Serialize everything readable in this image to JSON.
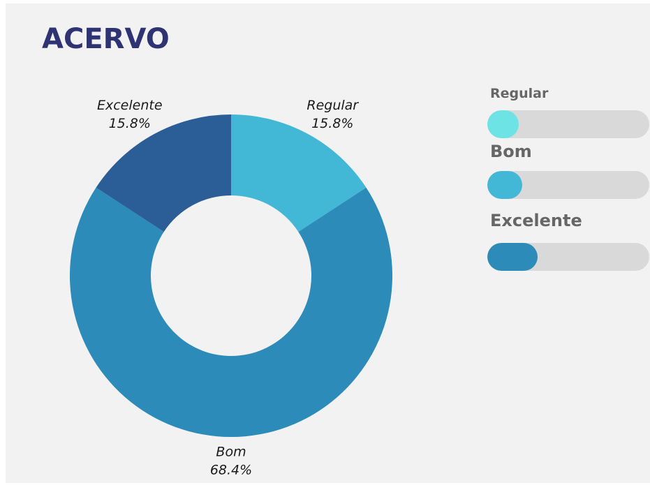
{
  "chart_data": {
    "type": "pie",
    "title": "ACERVO",
    "categories": [
      "Regular",
      "Bom",
      "Excelente"
    ],
    "values": [
      15.8,
      68.4,
      15.8
    ],
    "value_labels": [
      "15.8%",
      "68.4%",
      "15.8%"
    ],
    "colors": [
      "#42b8d6",
      "#2d8bba",
      "#2b5d97"
    ]
  }
}
